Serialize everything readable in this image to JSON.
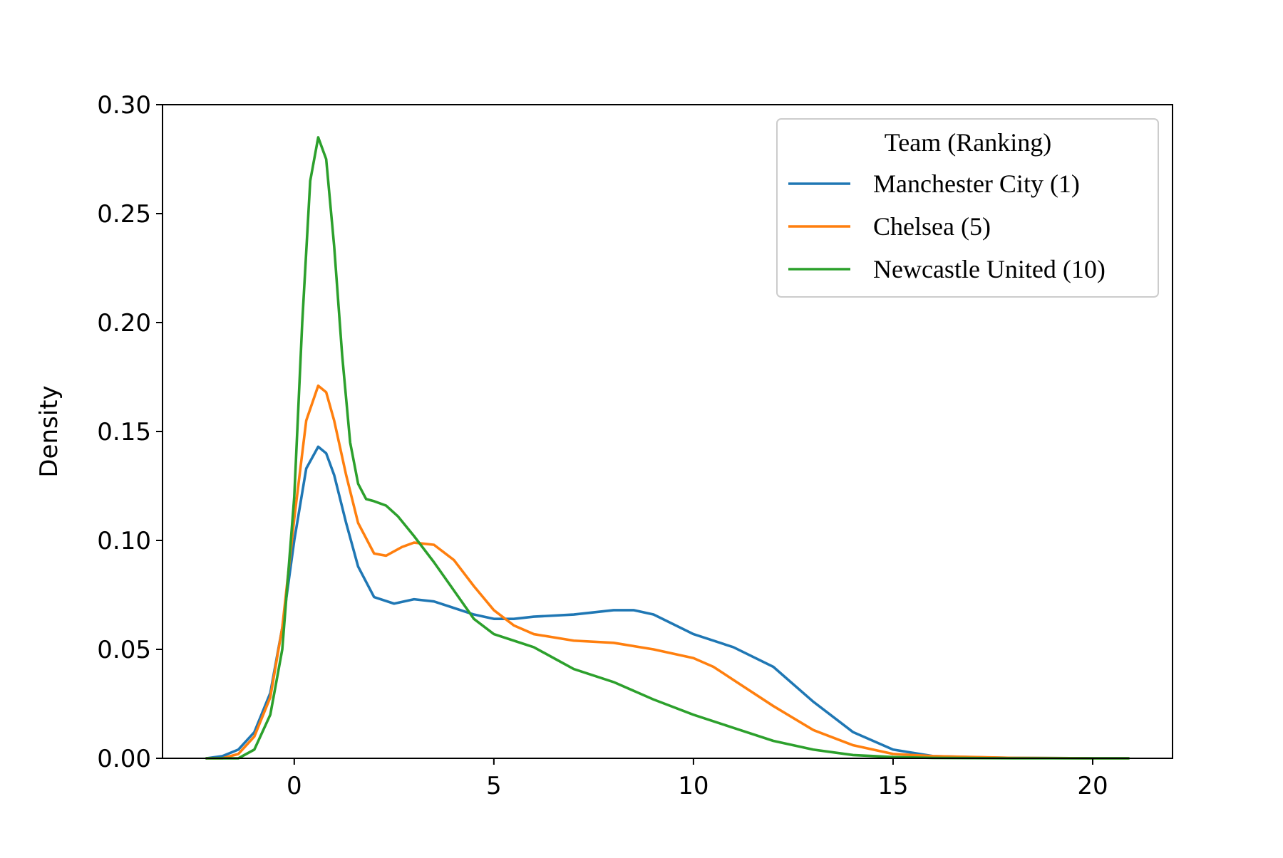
{
  "chart_data": {
    "type": "line",
    "title": "",
    "xlabel": "",
    "ylabel": "Density",
    "xlim": [
      -3.3,
      22.0
    ],
    "ylim": [
      0,
      0.3
    ],
    "xticks": [
      0,
      5,
      10,
      15,
      20
    ],
    "yticks": [
      0.0,
      0.05,
      0.1,
      0.15,
      0.2,
      0.25,
      0.3
    ],
    "ytick_labels": [
      "0.00",
      "0.05",
      "0.10",
      "0.15",
      "0.20",
      "0.25",
      "0.30"
    ],
    "xtick_labels": [
      "0",
      "5",
      "10",
      "15",
      "20"
    ],
    "grid": false,
    "legend": {
      "title": "Team (Ranking)",
      "position": "top-right"
    },
    "series": [
      {
        "name": "Manchester City (1)",
        "color": "#1f77b4",
        "x": [
          -2.2,
          -1.8,
          -1.4,
          -1.0,
          -0.6,
          -0.3,
          0.0,
          0.3,
          0.6,
          0.8,
          1.0,
          1.3,
          1.6,
          2.0,
          2.5,
          3.0,
          3.5,
          4.0,
          4.5,
          5.0,
          5.5,
          6.0,
          7.0,
          8.0,
          8.5,
          9.0,
          10.0,
          11.0,
          12.0,
          13.0,
          14.0,
          15.0,
          16.0,
          17.0,
          18.0,
          19.0,
          20.0,
          20.9
        ],
        "y": [
          0.0,
          0.001,
          0.004,
          0.012,
          0.03,
          0.06,
          0.1,
          0.133,
          0.143,
          0.14,
          0.13,
          0.108,
          0.088,
          0.074,
          0.071,
          0.073,
          0.072,
          0.069,
          0.066,
          0.064,
          0.064,
          0.065,
          0.066,
          0.068,
          0.068,
          0.066,
          0.057,
          0.051,
          0.042,
          0.026,
          0.012,
          0.004,
          0.001,
          0.0005,
          0.0002,
          0.0001,
          0.0,
          0.0
        ]
      },
      {
        "name": "Chelsea (5)",
        "color": "#ff7f0e",
        "x": [
          -2.2,
          -1.8,
          -1.4,
          -1.0,
          -0.6,
          -0.3,
          0.0,
          0.3,
          0.6,
          0.8,
          1.0,
          1.3,
          1.6,
          2.0,
          2.3,
          2.7,
          3.0,
          3.5,
          4.0,
          4.5,
          5.0,
          5.5,
          6.0,
          7.0,
          8.0,
          9.0,
          10.0,
          10.5,
          11.0,
          12.0,
          13.0,
          14.0,
          15.0,
          16.0,
          17.0,
          18.0,
          19.0,
          20.0,
          20.9
        ],
        "y": [
          0.0,
          0.0,
          0.002,
          0.01,
          0.028,
          0.06,
          0.11,
          0.155,
          0.171,
          0.168,
          0.155,
          0.13,
          0.108,
          0.094,
          0.093,
          0.097,
          0.099,
          0.098,
          0.091,
          0.079,
          0.068,
          0.061,
          0.057,
          0.054,
          0.053,
          0.05,
          0.046,
          0.042,
          0.036,
          0.024,
          0.013,
          0.006,
          0.002,
          0.001,
          0.0006,
          0.0002,
          0.0001,
          0.0,
          0.0
        ]
      },
      {
        "name": "Newcastle United (10)",
        "color": "#2ca02c",
        "x": [
          -2.2,
          -1.8,
          -1.4,
          -1.0,
          -0.6,
          -0.3,
          0.0,
          0.2,
          0.4,
          0.6,
          0.8,
          1.0,
          1.2,
          1.4,
          1.6,
          1.8,
          2.0,
          2.3,
          2.6,
          3.0,
          3.5,
          4.0,
          4.5,
          5.0,
          5.5,
          6.0,
          6.5,
          7.0,
          8.0,
          9.0,
          10.0,
          11.0,
          12.0,
          13.0,
          14.0,
          15.0,
          16.0,
          17.0,
          18.0,
          19.0,
          20.0,
          20.9
        ],
        "y": [
          0.0,
          0.0,
          0.0,
          0.004,
          0.02,
          0.05,
          0.12,
          0.2,
          0.265,
          0.285,
          0.275,
          0.235,
          0.185,
          0.145,
          0.126,
          0.119,
          0.118,
          0.116,
          0.111,
          0.102,
          0.09,
          0.077,
          0.064,
          0.057,
          0.054,
          0.051,
          0.046,
          0.041,
          0.035,
          0.027,
          0.02,
          0.014,
          0.008,
          0.004,
          0.0015,
          0.0006,
          0.0002,
          0.0001,
          0.0,
          0.0,
          0.0,
          0.0
        ]
      }
    ]
  }
}
